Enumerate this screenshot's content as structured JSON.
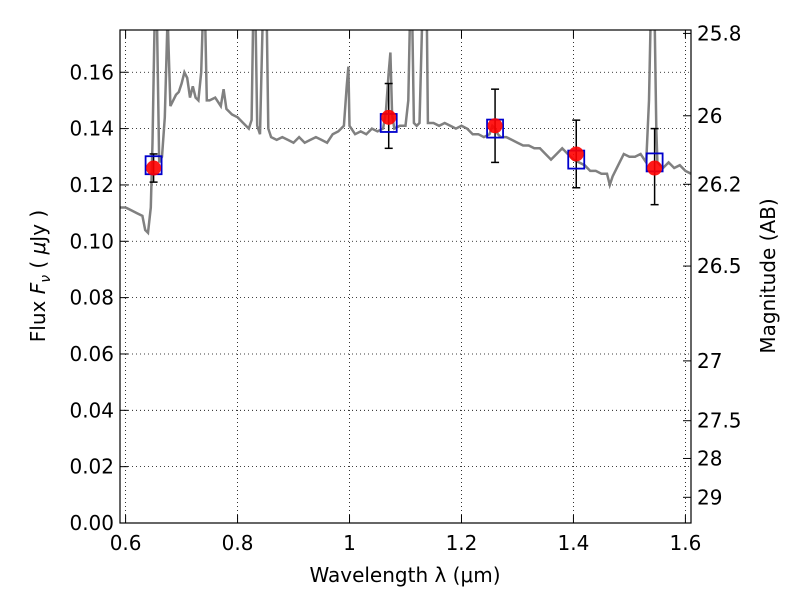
{
  "chart_data": {
    "type": "scatter",
    "title": "",
    "xlabel": "Wavelength  λ (μm)",
    "ylabel": "Flux  F_ν  ( μJy )",
    "ylabel_parts": [
      "Flux  ",
      "F",
      "ν",
      "  ( ",
      "μ",
      "Jy )"
    ],
    "y2label": "Magnitude (AB)",
    "xlim": [
      0.59,
      1.61
    ],
    "ylim": [
      0.0,
      0.175
    ],
    "grid": true,
    "x_ticks": [
      0.6,
      0.8,
      1.0,
      1.2,
      1.4,
      1.6
    ],
    "x_tick_labels": [
      "0.6",
      "0.8",
      "1",
      "1.2",
      "1.4",
      "1.6"
    ],
    "y_ticks": [
      0.0,
      0.02,
      0.04,
      0.06,
      0.08,
      0.1,
      0.12,
      0.14,
      0.16
    ],
    "y_tick_labels": [
      "0.00",
      "0.02",
      "0.04",
      "0.06",
      "0.08",
      "0.10",
      "0.12",
      "0.14",
      "0.16"
    ],
    "mag_ticks": [
      25.8,
      26,
      26.2,
      26.5,
      27,
      27.5,
      28,
      29
    ],
    "mag_tick_labels": [
      "25.8",
      "26",
      "26.2",
      "26.5",
      "27",
      "27.5",
      "28",
      "29"
    ],
    "observed": {
      "x": [
        0.65,
        1.07,
        1.26,
        1.405,
        1.545
      ],
      "y": [
        0.126,
        0.144,
        0.141,
        0.131,
        0.126
      ],
      "yerr_low": [
        0.121,
        0.133,
        0.128,
        0.119,
        0.113
      ],
      "yerr_high": [
        0.131,
        0.156,
        0.154,
        0.143,
        0.14
      ],
      "color": "#ff0000"
    },
    "model_bands": {
      "x": [
        0.65,
        1.07,
        1.26,
        1.405,
        1.545
      ],
      "y": [
        0.127,
        0.142,
        0.14,
        0.129,
        0.128
      ],
      "color": "#0000cc"
    },
    "spectrum": {
      "color": "#808080",
      "points": [
        [
          0.59,
          0.112
        ],
        [
          0.6,
          0.112
        ],
        [
          0.61,
          0.111
        ],
        [
          0.62,
          0.11
        ],
        [
          0.63,
          0.109
        ],
        [
          0.635,
          0.104
        ],
        [
          0.64,
          0.103
        ],
        [
          0.645,
          0.112
        ],
        [
          0.648,
          0.135
        ],
        [
          0.652,
          0.18
        ],
        [
          0.656,
          0.18
        ],
        [
          0.66,
          0.128
        ],
        [
          0.665,
          0.13
        ],
        [
          0.67,
          0.144
        ],
        [
          0.675,
          0.18
        ],
        [
          0.68,
          0.148
        ],
        [
          0.685,
          0.15
        ],
        [
          0.69,
          0.152
        ],
        [
          0.695,
          0.153
        ],
        [
          0.7,
          0.156
        ],
        [
          0.705,
          0.16
        ],
        [
          0.71,
          0.158
        ],
        [
          0.715,
          0.151
        ],
        [
          0.72,
          0.155
        ],
        [
          0.725,
          0.151
        ],
        [
          0.73,
          0.15
        ],
        [
          0.735,
          0.16
        ],
        [
          0.738,
          0.18
        ],
        [
          0.742,
          0.18
        ],
        [
          0.745,
          0.15
        ],
        [
          0.75,
          0.15
        ],
        [
          0.76,
          0.151
        ],
        [
          0.77,
          0.148
        ],
        [
          0.775,
          0.154
        ],
        [
          0.78,
          0.147
        ],
        [
          0.79,
          0.145
        ],
        [
          0.8,
          0.144
        ],
        [
          0.81,
          0.142
        ],
        [
          0.82,
          0.14
        ],
        [
          0.825,
          0.143
        ],
        [
          0.828,
          0.18
        ],
        [
          0.832,
          0.18
        ],
        [
          0.835,
          0.141
        ],
        [
          0.84,
          0.138
        ],
        [
          0.845,
          0.18
        ],
        [
          0.852,
          0.18
        ],
        [
          0.855,
          0.14
        ],
        [
          0.86,
          0.137
        ],
        [
          0.87,
          0.136
        ],
        [
          0.88,
          0.137
        ],
        [
          0.89,
          0.136
        ],
        [
          0.9,
          0.135
        ],
        [
          0.91,
          0.137
        ],
        [
          0.92,
          0.135
        ],
        [
          0.93,
          0.136
        ],
        [
          0.94,
          0.137
        ],
        [
          0.95,
          0.136
        ],
        [
          0.96,
          0.135
        ],
        [
          0.97,
          0.138
        ],
        [
          0.98,
          0.139
        ],
        [
          0.99,
          0.141
        ],
        [
          0.995,
          0.155
        ],
        [
          0.998,
          0.162
        ],
        [
          1.0,
          0.141
        ],
        [
          1.01,
          0.138
        ],
        [
          1.02,
          0.139
        ],
        [
          1.03,
          0.138
        ],
        [
          1.04,
          0.14
        ],
        [
          1.05,
          0.139
        ],
        [
          1.06,
          0.14
        ],
        [
          1.065,
          0.146
        ],
        [
          1.07,
          0.16
        ],
        [
          1.073,
          0.167
        ],
        [
          1.076,
          0.145
        ],
        [
          1.08,
          0.14
        ],
        [
          1.09,
          0.141
        ],
        [
          1.1,
          0.141
        ],
        [
          1.105,
          0.15
        ],
        [
          1.108,
          0.18
        ],
        [
          1.112,
          0.18
        ],
        [
          1.115,
          0.142
        ],
        [
          1.12,
          0.141
        ],
        [
          1.125,
          0.142
        ],
        [
          1.13,
          0.18
        ],
        [
          1.138,
          0.18
        ],
        [
          1.14,
          0.142
        ],
        [
          1.15,
          0.142
        ],
        [
          1.16,
          0.141
        ],
        [
          1.17,
          0.142
        ],
        [
          1.18,
          0.141
        ],
        [
          1.19,
          0.14
        ],
        [
          1.2,
          0.141
        ],
        [
          1.21,
          0.14
        ],
        [
          1.22,
          0.138
        ],
        [
          1.23,
          0.138
        ],
        [
          1.24,
          0.137
        ],
        [
          1.25,
          0.138
        ],
        [
          1.255,
          0.141
        ],
        [
          1.26,
          0.14
        ],
        [
          1.265,
          0.138
        ],
        [
          1.27,
          0.137
        ],
        [
          1.28,
          0.137
        ],
        [
          1.29,
          0.136
        ],
        [
          1.3,
          0.135
        ],
        [
          1.31,
          0.134
        ],
        [
          1.32,
          0.134
        ],
        [
          1.33,
          0.133
        ],
        [
          1.34,
          0.133
        ],
        [
          1.35,
          0.131
        ],
        [
          1.36,
          0.129
        ],
        [
          1.37,
          0.131
        ],
        [
          1.38,
          0.133
        ],
        [
          1.39,
          0.131
        ],
        [
          1.4,
          0.129
        ],
        [
          1.41,
          0.128
        ],
        [
          1.42,
          0.127
        ],
        [
          1.43,
          0.125
        ],
        [
          1.44,
          0.125
        ],
        [
          1.45,
          0.124
        ],
        [
          1.46,
          0.124
        ],
        [
          1.465,
          0.12
        ],
        [
          1.47,
          0.123
        ],
        [
          1.48,
          0.127
        ],
        [
          1.49,
          0.131
        ],
        [
          1.5,
          0.13
        ],
        [
          1.51,
          0.13
        ],
        [
          1.52,
          0.131
        ],
        [
          1.53,
          0.128
        ],
        [
          1.535,
          0.15
        ],
        [
          1.538,
          0.18
        ],
        [
          1.545,
          0.18
        ],
        [
          1.548,
          0.14
        ],
        [
          1.55,
          0.128
        ],
        [
          1.56,
          0.126
        ],
        [
          1.57,
          0.128
        ],
        [
          1.58,
          0.126
        ],
        [
          1.59,
          0.127
        ],
        [
          1.6,
          0.125
        ],
        [
          1.61,
          0.124
        ]
      ]
    }
  }
}
